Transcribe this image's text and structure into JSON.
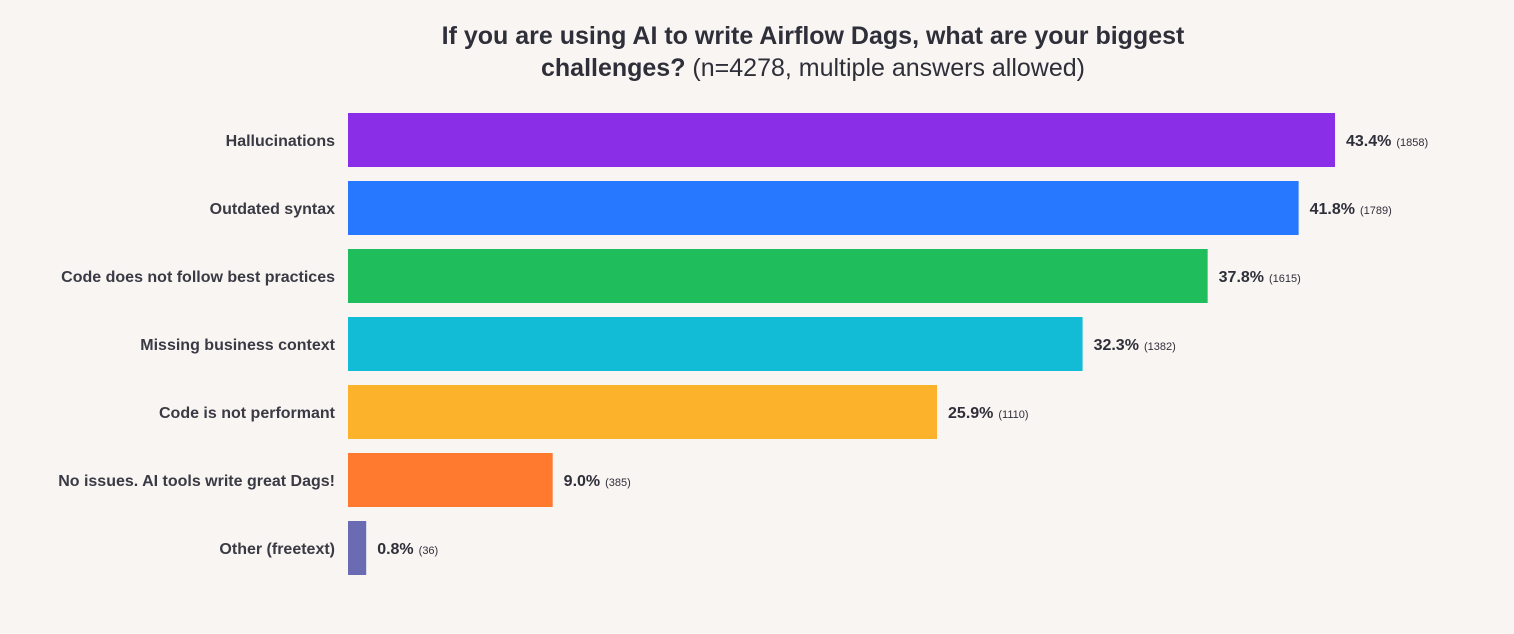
{
  "chart_data": {
    "type": "bar",
    "orientation": "horizontal",
    "title": {
      "line1": "If you are using AI to write Airflow Dags, what are your biggest",
      "line2_bold": "challenges?",
      "line2_rest": " (n=4278, multiple answers allowed)"
    },
    "xlim": [
      0,
      43.4
    ],
    "grid": false,
    "legend": "none",
    "categories": [
      "Hallucinations",
      "Outdated syntax",
      "Code does not follow best practices",
      "Missing business context",
      "Code is not performant",
      "No issues. AI tools write great Dags!",
      "Other (freetext)"
    ],
    "values": [
      43.4,
      41.8,
      37.8,
      32.3,
      25.9,
      9.0,
      0.8
    ],
    "value_labels": [
      "43.4%",
      "41.8%",
      "37.8%",
      "32.3%",
      "25.9%",
      "9.0%",
      "0.8%"
    ],
    "counts": [
      "(1858)",
      "(1789)",
      "(1615)",
      "(1382)",
      "(1110)",
      "(385)",
      "(36)"
    ],
    "colors": [
      "#8a2ee8",
      "#2878ff",
      "#1fbd5c",
      "#13bcd6",
      "#fdb22c",
      "#ff7a2f",
      "#6b6bb3"
    ]
  }
}
